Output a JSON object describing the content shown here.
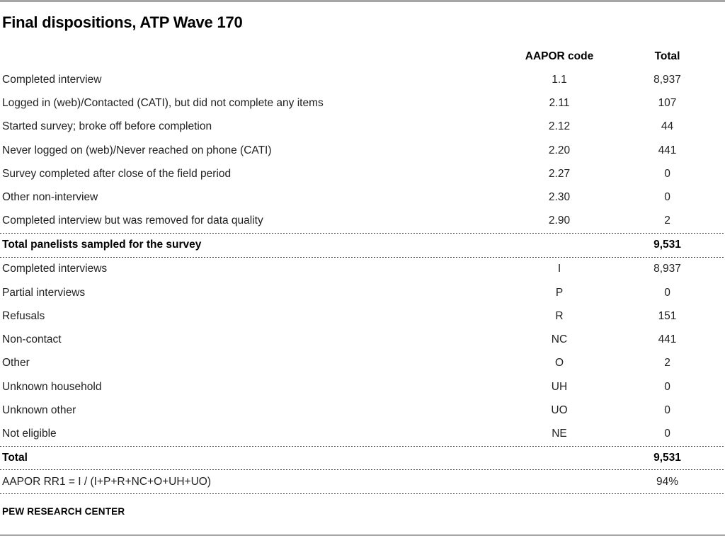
{
  "footer": "PEW RESEARCH CENTER",
  "colors": {
    "text": "#212121",
    "title": "#000000",
    "gray_rule": "#a6a6a6",
    "dotted_rule": "#3f3f3f",
    "background": "#ffffff"
  },
  "chart_data": {
    "type": "table",
    "title": "Final dispositions, ATP Wave 170",
    "columns_header": {
      "code": "AAPOR code",
      "total": "Total"
    },
    "disposition_rows": [
      {
        "label": "Completed interview",
        "code": "1.1",
        "total": "8,937"
      },
      {
        "label": "Logged in (web)/Contacted (CATI), but did not complete any items",
        "code": "2.11",
        "total": "107"
      },
      {
        "label": "Started survey; broke off before completion",
        "code": "2.12",
        "total": "44"
      },
      {
        "label": "Never logged on (web)/Never reached on phone (CATI)",
        "code": "2.20",
        "total": "441"
      },
      {
        "label": "Survey completed after close of the field period",
        "code": "2.27",
        "total": "0"
      },
      {
        "label": "Other non-interview",
        "code": "2.30",
        "total": "0"
      },
      {
        "label": "Completed interview but was removed for data quality",
        "code": "2.90",
        "total": "2"
      }
    ],
    "sampled_summary": {
      "label": "Total panelists sampled for the survey",
      "code": "",
      "total": "9,531"
    },
    "aapor_rows": [
      {
        "label": "Completed interviews",
        "code": "I",
        "total": "8,937"
      },
      {
        "label": "Partial interviews",
        "code": "P",
        "total": "0"
      },
      {
        "label": "Refusals",
        "code": "R",
        "total": "151"
      },
      {
        "label": "Non-contact",
        "code": "NC",
        "total": "441"
      },
      {
        "label": "Other",
        "code": "O",
        "total": "2"
      },
      {
        "label": "Unknown household",
        "code": "UH",
        "total": "0"
      },
      {
        "label": "Unknown other",
        "code": "UO",
        "total": "0"
      },
      {
        "label": "Not eligible",
        "code": "NE",
        "total": "0"
      }
    ],
    "total_summary": {
      "label": "Total",
      "code": "",
      "total": "9,531"
    },
    "response_rate": {
      "label": "AAPOR RR1 = I / (I+P+R+NC+O+UH+UO)",
      "code": "",
      "total": "94%"
    }
  }
}
